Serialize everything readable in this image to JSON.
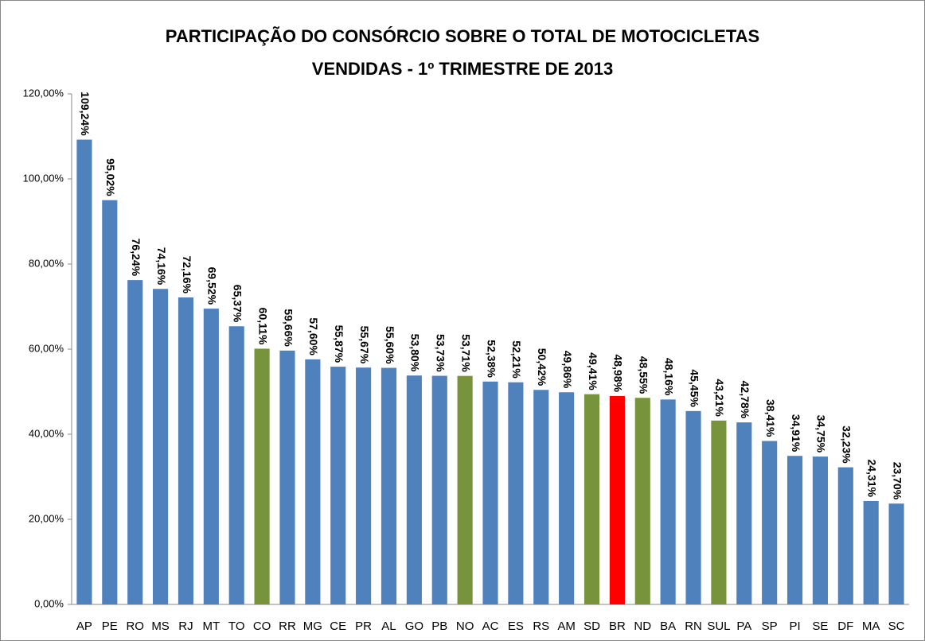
{
  "chart_data": {
    "type": "bar",
    "title": [
      "PARTICIPAÇÃO DO CONSÓRCIO SOBRE O TOTAL DE MOTOCICLETAS",
      "VENDIDAS - 1º TRIMESTRE DE 2013"
    ],
    "categories": [
      "AP",
      "PE",
      "RO",
      "MS",
      "RJ",
      "MT",
      "TO",
      "CO",
      "RR",
      "MG",
      "CE",
      "PR",
      "AL",
      "GO",
      "PB",
      "NO",
      "AC",
      "ES",
      "RS",
      "AM",
      "SD",
      "BR",
      "ND",
      "BA",
      "RN",
      "SUL",
      "PA",
      "SP",
      "PI",
      "SE",
      "DF",
      "MA",
      "SC"
    ],
    "values": [
      109.24,
      95.02,
      76.24,
      74.16,
      72.16,
      69.52,
      65.37,
      60.11,
      59.66,
      57.6,
      55.87,
      55.67,
      55.6,
      53.8,
      53.73,
      53.71,
      52.38,
      52.21,
      50.42,
      49.86,
      49.41,
      48.98,
      48.55,
      48.16,
      45.45,
      43.21,
      42.78,
      38.41,
      34.91,
      34.75,
      32.23,
      24.31,
      23.7
    ],
    "value_labels": [
      "109,24%",
      "95,02%",
      "76,24%",
      "74,16%",
      "72,16%",
      "69,52%",
      "65,37%",
      "60,11%",
      "59,66%",
      "57,60%",
      "55,87%",
      "55,67%",
      "55,60%",
      "53,80%",
      "53,73%",
      "53,71%",
      "52,38%",
      "52,21%",
      "50,42%",
      "49,86%",
      "49,41%",
      "48,98%",
      "48,55%",
      "48,16%",
      "45,45%",
      "43,21%",
      "42,78%",
      "38,41%",
      "34,91%",
      "34,75%",
      "32,23%",
      "24,31%",
      "23,70%"
    ],
    "colors": [
      "#4f81bd",
      "#4f81bd",
      "#4f81bd",
      "#4f81bd",
      "#4f81bd",
      "#4f81bd",
      "#4f81bd",
      "#77933c",
      "#4f81bd",
      "#4f81bd",
      "#4f81bd",
      "#4f81bd",
      "#4f81bd",
      "#4f81bd",
      "#4f81bd",
      "#77933c",
      "#4f81bd",
      "#4f81bd",
      "#4f81bd",
      "#4f81bd",
      "#77933c",
      "#ff0000",
      "#77933c",
      "#4f81bd",
      "#4f81bd",
      "#77933c",
      "#4f81bd",
      "#4f81bd",
      "#4f81bd",
      "#4f81bd",
      "#4f81bd",
      "#4f81bd",
      "#4f81bd"
    ],
    "ylim": [
      0,
      120
    ],
    "yticks": [
      {
        "value": 0,
        "label": "0,00%"
      },
      {
        "value": 20,
        "label": "20,00%"
      },
      {
        "value": 40,
        "label": "40,00%"
      },
      {
        "value": 60,
        "label": "60,00%"
      },
      {
        "value": 80,
        "label": "80,00%"
      },
      {
        "value": 100,
        "label": "100,00%"
      },
      {
        "value": 120,
        "label": "120,00%"
      }
    ],
    "grid": false
  }
}
